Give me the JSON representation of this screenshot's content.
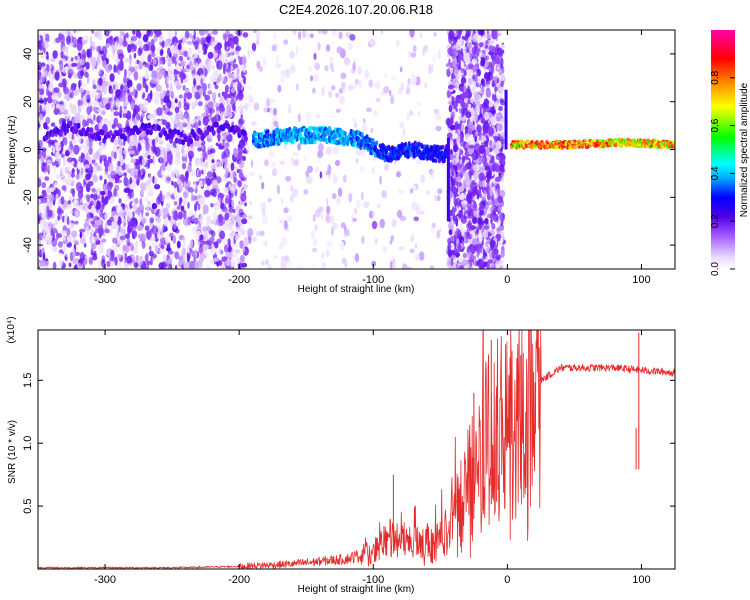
{
  "title": "C2E4.2026.107.20.06.R18",
  "chart_data": [
    {
      "type": "heatmap",
      "name": "spectrogram",
      "xlabel": "Height of straight line (km)",
      "ylabel": "Frequency (Hz)",
      "xlim": [
        -350,
        125
      ],
      "ylim": [
        -50,
        50
      ],
      "xticks": [
        -300,
        -200,
        -100,
        0,
        100
      ],
      "yticks": [
        -40,
        -20,
        0,
        20,
        40
      ],
      "colorbar": {
        "label": "Normalized spectral amplitude",
        "range": [
          0,
          1
        ],
        "ticks": [
          "0.0",
          "0.2",
          "0.4",
          "0.6",
          "0.8"
        ],
        "colors": [
          "#ffffff",
          "#e8d8ff",
          "#9a4bff",
          "#5000e6",
          "#0000ff",
          "#00aaff",
          "#00ffff",
          "#00ff00",
          "#ffff00",
          "#ff8800",
          "#ff0000",
          "#ff00aa"
        ]
      },
      "ridge": [
        {
          "x": -190,
          "f": 4,
          "amp": 0.45
        },
        {
          "x": -160,
          "f": 6,
          "amp": 0.5
        },
        {
          "x": -130,
          "f": 6,
          "amp": 0.5
        },
        {
          "x": -110,
          "f": 4,
          "amp": 0.45
        },
        {
          "x": -90,
          "f": -2,
          "amp": 0.4
        },
        {
          "x": -70,
          "f": 0,
          "amp": 0.4
        },
        {
          "x": -50,
          "f": -2,
          "amp": 0.35
        },
        {
          "x": 5,
          "f": 2,
          "amp": 0.85
        },
        {
          "x": 50,
          "f": 2,
          "amp": 0.9
        },
        {
          "x": 90,
          "f": 3,
          "amp": 0.8
        },
        {
          "x": 125,
          "f": 2,
          "amp": 0.85
        }
      ]
    },
    {
      "type": "line",
      "name": "snr",
      "xlabel": "Height of straight line (km)",
      "ylabel": "SNR (10 * v/v)",
      "yscale_label": "(x10⁴)",
      "xlim": [
        -350,
        125
      ],
      "ylim": [
        0,
        1.9
      ],
      "xticks": [
        -300,
        -200,
        -100,
        0,
        100
      ],
      "yticks": [
        "0.5",
        "1.0",
        "1.5"
      ],
      "color": "#e52b2b",
      "envelope": [
        {
          "x": -350,
          "y": 0.01
        },
        {
          "x": -250,
          "y": 0.01
        },
        {
          "x": -200,
          "y": 0.02
        },
        {
          "x": -160,
          "y": 0.04
        },
        {
          "x": -120,
          "y": 0.08
        },
        {
          "x": -100,
          "y": 0.14
        },
        {
          "x": -85,
          "y": 0.25
        },
        {
          "x": -70,
          "y": 0.2
        },
        {
          "x": -55,
          "y": 0.2
        },
        {
          "x": -45,
          "y": 0.3
        },
        {
          "x": -35,
          "y": 0.55
        },
        {
          "x": -25,
          "y": 0.8
        },
        {
          "x": -15,
          "y": 1.0
        },
        {
          "x": -5,
          "y": 1.1
        },
        {
          "x": 5,
          "y": 1.2
        },
        {
          "x": 15,
          "y": 1.35
        },
        {
          "x": 25,
          "y": 1.5
        },
        {
          "x": 40,
          "y": 1.6
        },
        {
          "x": 80,
          "y": 1.6
        },
        {
          "x": 100,
          "y": 1.58
        },
        {
          "x": 125,
          "y": 1.56
        }
      ],
      "spikes": [
        {
          "x": -85,
          "y": 0.75
        },
        {
          "x": -25,
          "y": 1.4
        },
        {
          "x": -18,
          "y": 1.9
        },
        {
          "x": -12,
          "y": 1.82
        },
        {
          "x": -8,
          "y": 1.45
        },
        {
          "x": 2,
          "y": 1.68
        },
        {
          "x": 10,
          "y": 1.7
        },
        {
          "x": 96,
          "y": 1.12
        },
        {
          "x": 98,
          "y": 1.88
        }
      ]
    }
  ]
}
